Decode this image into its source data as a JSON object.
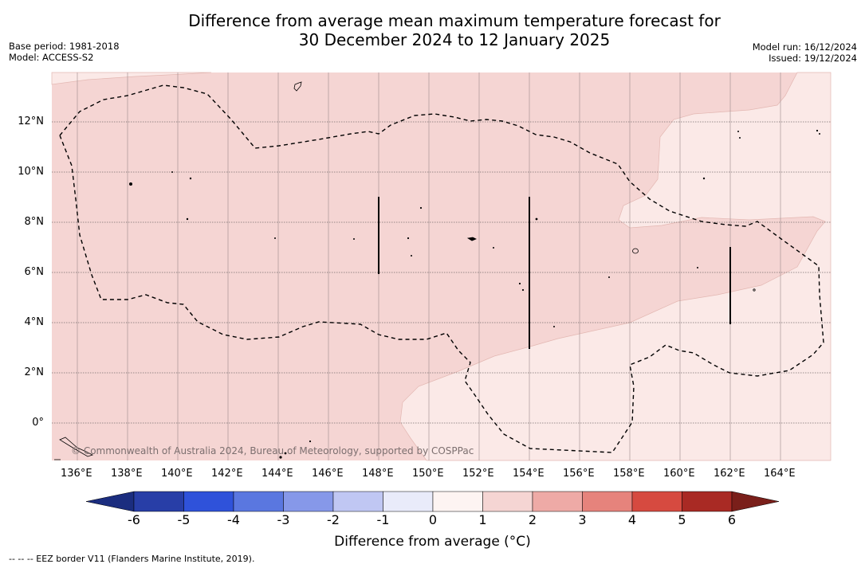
{
  "title": {
    "line1": "Difference from average mean maximum temperature forecast for",
    "line2": "30 December 2024 to 12 January 2025"
  },
  "meta": {
    "base_period": "Base period: 1981-2018",
    "model": "Model: ACCESS-S2",
    "model_run": "Model run: 16/12/2024",
    "issued": "Issued: 19/12/2024"
  },
  "map": {
    "lon_ticks": [
      "136°E",
      "138°E",
      "140°E",
      "142°E",
      "144°E",
      "146°E",
      "148°E",
      "150°E",
      "152°E",
      "154°E",
      "156°E",
      "158°E",
      "160°E",
      "162°E",
      "164°E"
    ],
    "lat_ticks": [
      "12°N",
      "10°N",
      "8°N",
      "6°N",
      "4°N",
      "2°N",
      "0°"
    ],
    "lon_range": [
      135,
      166
    ],
    "lat_range": [
      -1.5,
      14
    ],
    "watermark": "© Commonwealth of Australia 2024, Bureau of Meteorology, supported by COSPPac",
    "anomaly_classes": [
      {
        "range": "1 to 2",
        "color": "#f5d5d3"
      },
      {
        "range": "0 to 1",
        "color": "#fbe9e7"
      }
    ]
  },
  "colorbar": {
    "ticks": [
      "-6",
      "-5",
      "-4",
      "-3",
      "-2",
      "-1",
      "0",
      "1",
      "2",
      "3",
      "4",
      "5",
      "6"
    ],
    "colors": [
      "#283ea7",
      "#2f52da",
      "#5a77e0",
      "#8698e9",
      "#c0c7f3",
      "#e9ebfa",
      "#fdf4f2",
      "#f5d5d3",
      "#eeaaa6",
      "#e6837c",
      "#d64a40",
      "#a92a24"
    ],
    "under_color": "#1b2d7f",
    "over_color": "#7a1f1a",
    "label": "Difference from average (°C)"
  },
  "footer": {
    "legend": "--  --  -- EEZ border V11 (Flanders Marine Institute, 2019)."
  }
}
